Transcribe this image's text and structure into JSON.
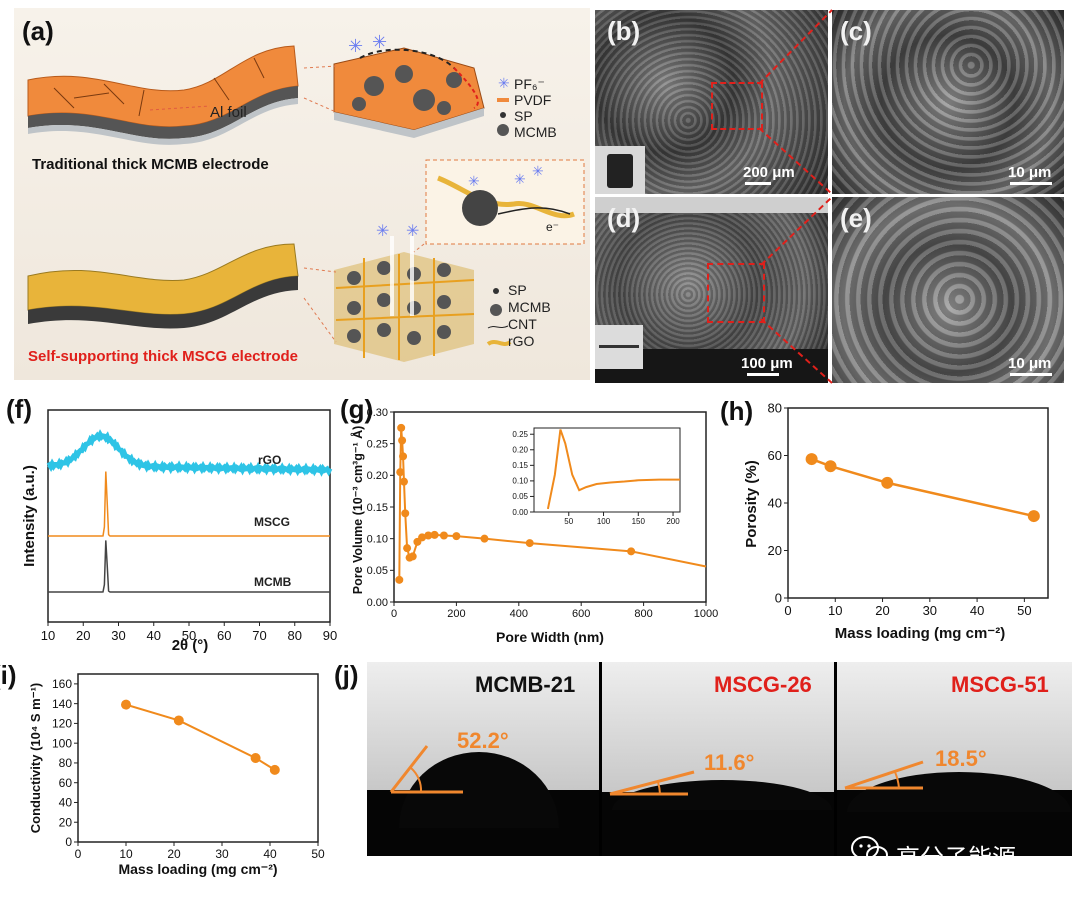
{
  "panel_a": {
    "label": "(a)",
    "al_foil": "Al foil",
    "traditional_caption": "Traditional thick MCMB electrode",
    "self_supporting_caption": "Self-supporting thick MSCG electrode",
    "legend_top": [
      "PF₆⁻",
      "PVDF",
      "SP",
      "MCMB"
    ],
    "legend_bottom": [
      "SP",
      "MCMB",
      "CNT",
      "rGO"
    ],
    "electron": "e⁻",
    "colors": {
      "orange": "#F08A3C",
      "gold": "#E8B43A",
      "red": "#E0201B"
    }
  },
  "sem": {
    "b": {
      "label": "(b)",
      "scale": "200 μm"
    },
    "c": {
      "label": "(c)",
      "scale": "10 μm"
    },
    "d": {
      "label": "(d)",
      "scale": "100 μm"
    },
    "e": {
      "label": "(e)",
      "scale": "10 μm"
    }
  },
  "panel_f": {
    "label": "(f)",
    "ylabel": "Intensity (a.u.)",
    "xlabel": "2θ (°)",
    "xticks": [
      "10",
      "20",
      "30",
      "40",
      "50",
      "60",
      "70",
      "80",
      "90"
    ],
    "curves": [
      "rGO",
      "MSCG",
      "MCMB"
    ],
    "colors": {
      "rGO": "#2EC4E6",
      "MSCG": "#F08A1C",
      "MCMB": "#444444"
    }
  },
  "chart_data": [
    {
      "type": "line",
      "panel": "(g)",
      "xlabel": "Pore Width (nm)",
      "ylabel": "Pore Volume (10⁻³ cm³g⁻¹ Å)",
      "xlim": [
        0,
        1000
      ],
      "ylim": [
        0,
        0.3
      ],
      "xticks": [
        "0",
        "200",
        "400",
        "600",
        "800",
        "1000"
      ],
      "yticks": [
        "0.00",
        "0.05",
        "0.10",
        "0.15",
        "0.20",
        "0.25",
        "0.30"
      ],
      "x": [
        17,
        20,
        23,
        26,
        29,
        32,
        36,
        42,
        50,
        60,
        75,
        90,
        110,
        130,
        160,
        200,
        290,
        435,
        760,
        1000
      ],
      "y": [
        0.035,
        0.205,
        0.275,
        0.255,
        0.23,
        0.19,
        0.14,
        0.085,
        0.07,
        0.072,
        0.095,
        0.102,
        0.105,
        0.106,
        0.105,
        0.104,
        0.1,
        0.093,
        0.08,
        0.056
      ],
      "inset": {
        "xlim": [
          0,
          210
        ],
        "ylim": [
          0,
          0.27
        ],
        "xticks": [
          "50",
          "100",
          "150",
          "200"
        ],
        "yticks": [
          "0.00",
          "0.05",
          "0.10",
          "0.15",
          "0.20",
          "0.25"
        ],
        "x": [
          20,
          30,
          38,
          45,
          55,
          65,
          75,
          90,
          110,
          130,
          150,
          180,
          210
        ],
        "y": [
          0.01,
          0.12,
          0.265,
          0.22,
          0.12,
          0.07,
          0.08,
          0.09,
          0.095,
          0.098,
          0.102,
          0.104,
          0.104
        ]
      }
    },
    {
      "type": "line",
      "panel": "(h)",
      "xlabel": "Mass loading (mg cm⁻²)",
      "ylabel": "Porosity (%)",
      "xlim": [
        0,
        55
      ],
      "ylim": [
        0,
        80
      ],
      "xticks": [
        "0",
        "10",
        "20",
        "30",
        "40",
        "50"
      ],
      "yticks": [
        "0",
        "20",
        "40",
        "60",
        "80"
      ],
      "x": [
        5,
        9,
        21,
        52
      ],
      "y": [
        58.5,
        55.5,
        48.5,
        34.5
      ]
    },
    {
      "type": "line",
      "panel": "(i)",
      "xlabel": "Mass loading (mg cm⁻²)",
      "ylabel": "Conductivity (10⁴ S m⁻¹)",
      "xlim": [
        0,
        50
      ],
      "ylim": [
        0,
        170
      ],
      "xticks": [
        "0",
        "10",
        "20",
        "30",
        "40",
        "50"
      ],
      "yticks": [
        "0",
        "20",
        "40",
        "60",
        "80",
        "100",
        "120",
        "140",
        "160"
      ],
      "x": [
        10,
        21,
        37,
        41
      ],
      "y": [
        139,
        123,
        85,
        73
      ]
    }
  ],
  "panel_j": {
    "label": "(j)",
    "samples": [
      {
        "name": "MCMB-21",
        "angle": "52.2°",
        "name_color": "#111111"
      },
      {
        "name": "MSCG-26",
        "angle": "11.6°",
        "name_color": "#E0201B"
      },
      {
        "name": "MSCG-51",
        "angle": "18.5°",
        "name_color": "#E0201B"
      }
    ],
    "angle_color": "#F0872E"
  },
  "watermark": "高分子能源"
}
